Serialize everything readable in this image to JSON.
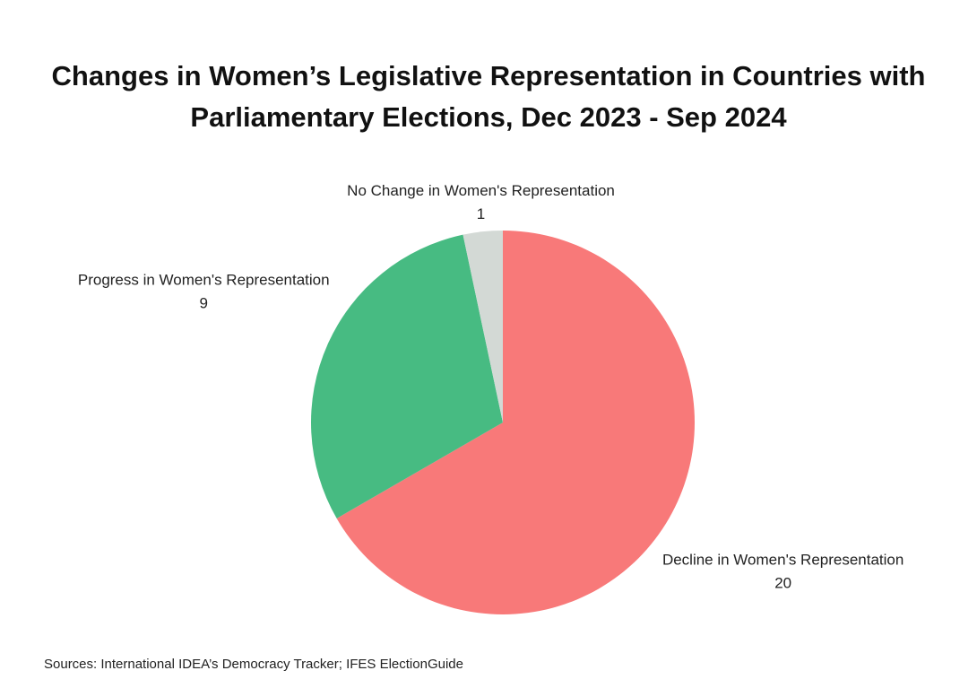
{
  "chart_data": {
    "type": "pie",
    "title": "Changes in Women’s Legislative Representation in Countries with Parliamentary Elections, Dec 2023 - Sep 2024",
    "categories": [
      "Decline in Women's Representation",
      "Progress in Women's Representation",
      "No Change in Women's Representation"
    ],
    "values": [
      20,
      9,
      1
    ],
    "colors": [
      "#f87979",
      "#47bb82",
      "#d3d9d5"
    ],
    "note": "Sources: International IDEA’s Democracy Tracker; IFES ElectionGuide"
  }
}
